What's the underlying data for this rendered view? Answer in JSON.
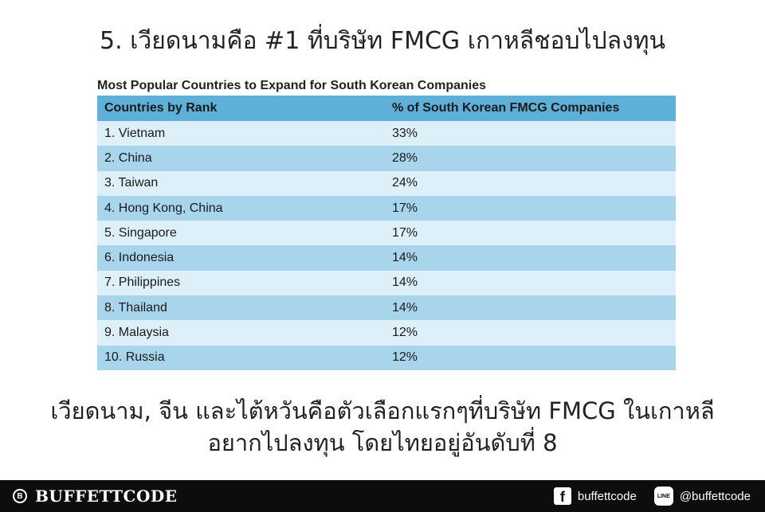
{
  "headline": "5. เวียดนามคือ #1 ที่บริษัท FMCG เกาหลีชอบไปลงทุน",
  "chart_data": {
    "type": "table",
    "title": "Most Popular Countries to Expand for South Korean Companies",
    "columns": [
      "Countries by Rank",
      "% of South Korean FMCG Companies"
    ],
    "rows": [
      [
        "1. Vietnam",
        "33%"
      ],
      [
        "2. China",
        "28%"
      ],
      [
        "3. Taiwan",
        "24%"
      ],
      [
        "4. Hong Kong, China",
        "17%"
      ],
      [
        "5. Singapore",
        "17%"
      ],
      [
        "6. Indonesia",
        "14%"
      ],
      [
        "7. Philippines",
        "14%"
      ],
      [
        "8. Thailand",
        "14%"
      ],
      [
        "9. Malaysia",
        "12%"
      ],
      [
        "10. Russia",
        "12%"
      ]
    ]
  },
  "caption": {
    "line1": "เวียดนาม, จีน และไต้หวันคือตัวเลือกแรกๆที่บริษัท FMCG ในเกาหลี",
    "line2": "อยากไปลงทุน โดยไทยอยู่อันดับที่ 8"
  },
  "footer": {
    "brand_icon_text": "B",
    "brand_name": "BUFFETTCODE",
    "facebook_icon_text": "f",
    "facebook_label": "buffettcode",
    "line_icon_text": "LINE",
    "line_label": "@buffettcode"
  }
}
